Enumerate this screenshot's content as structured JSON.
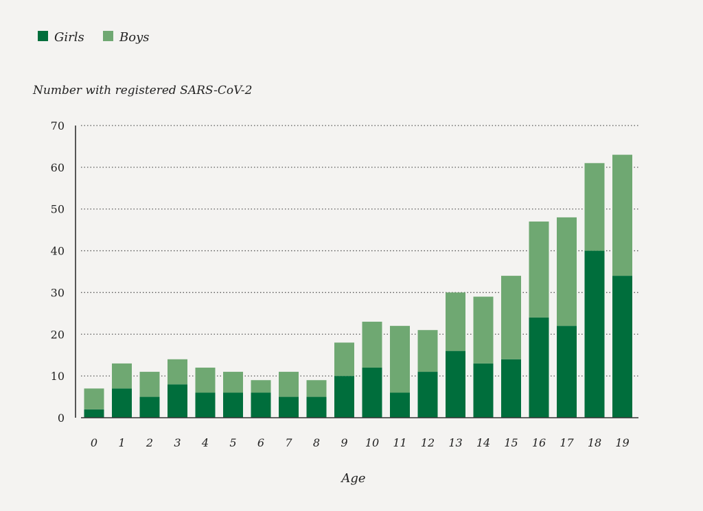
{
  "chart_data": {
    "type": "bar",
    "stacked": true,
    "title": "",
    "ylabel": "Number with registered SARS-CoV-2",
    "xlabel": "Age",
    "ylim": [
      0,
      70
    ],
    "yticks": [
      0,
      10,
      20,
      30,
      40,
      50,
      60,
      70
    ],
    "grid": true,
    "legend_placement": "top-left",
    "categories": [
      "0",
      "1",
      "2",
      "3",
      "4",
      "5",
      "6",
      "7",
      "8",
      "9",
      "10",
      "11",
      "12",
      "13",
      "14",
      "15",
      "16",
      "17",
      "18",
      "19"
    ],
    "series": [
      {
        "name": "Girls",
        "color": "#006e3c",
        "values": [
          2,
          7,
          5,
          8,
          6,
          6,
          6,
          5,
          5,
          10,
          12,
          6,
          11,
          16,
          13,
          14,
          24,
          22,
          40,
          34
        ]
      },
      {
        "name": "Boys",
        "color": "#6fa872",
        "values": [
          5,
          6,
          6,
          6,
          6,
          5,
          3,
          6,
          4,
          8,
          11,
          16,
          10,
          14,
          16,
          20,
          23,
          26,
          21,
          29
        ]
      }
    ]
  }
}
